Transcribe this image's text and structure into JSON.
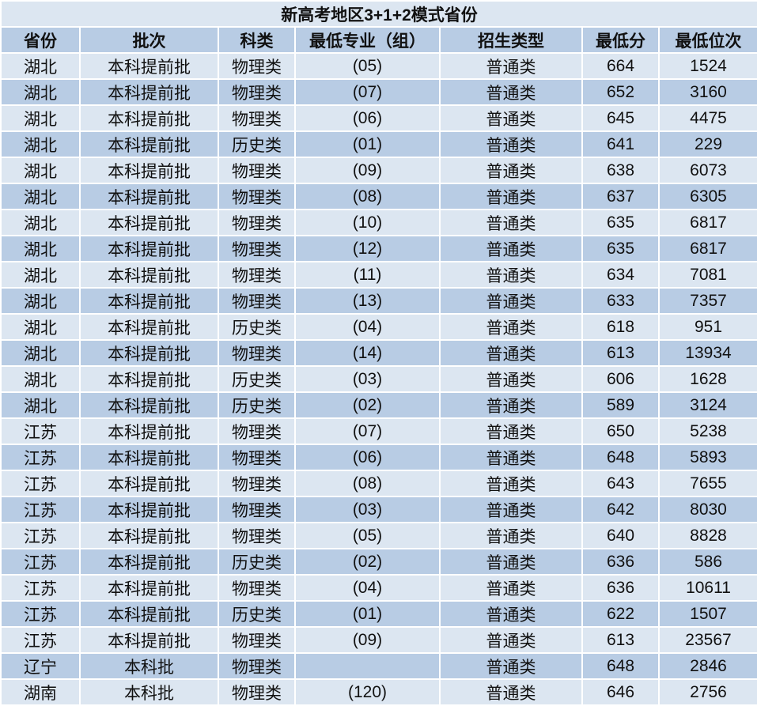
{
  "title": "新高考地区3+1+2模式省份",
  "headers": [
    "省份",
    "批次",
    "科类",
    "最低专业（组）",
    "招生类型",
    "最低分",
    "最低位次"
  ],
  "rows": [
    [
      "湖北",
      "本科提前批",
      "物理类",
      "(05)",
      "普通类",
      "664",
      "1524"
    ],
    [
      "湖北",
      "本科提前批",
      "物理类",
      "(07)",
      "普通类",
      "652",
      "3160"
    ],
    [
      "湖北",
      "本科提前批",
      "物理类",
      "(06)",
      "普通类",
      "645",
      "4475"
    ],
    [
      "湖北",
      "本科提前批",
      "历史类",
      "(01)",
      "普通类",
      "641",
      "229"
    ],
    [
      "湖北",
      "本科提前批",
      "物理类",
      "(09)",
      "普通类",
      "638",
      "6073"
    ],
    [
      "湖北",
      "本科提前批",
      "物理类",
      "(08)",
      "普通类",
      "637",
      "6305"
    ],
    [
      "湖北",
      "本科提前批",
      "物理类",
      "(10)",
      "普通类",
      "635",
      "6817"
    ],
    [
      "湖北",
      "本科提前批",
      "物理类",
      "(12)",
      "普通类",
      "635",
      "6817"
    ],
    [
      "湖北",
      "本科提前批",
      "物理类",
      "(11)",
      "普通类",
      "634",
      "7081"
    ],
    [
      "湖北",
      "本科提前批",
      "物理类",
      "(13)",
      "普通类",
      "633",
      "7357"
    ],
    [
      "湖北",
      "本科提前批",
      "历史类",
      "(04)",
      "普通类",
      "618",
      "951"
    ],
    [
      "湖北",
      "本科提前批",
      "物理类",
      "(14)",
      "普通类",
      "613",
      "13934"
    ],
    [
      "湖北",
      "本科提前批",
      "历史类",
      "(03)",
      "普通类",
      "606",
      "1628"
    ],
    [
      "湖北",
      "本科提前批",
      "历史类",
      "(02)",
      "普通类",
      "589",
      "3124"
    ],
    [
      "江苏",
      "本科提前批",
      "物理类",
      "(07)",
      "普通类",
      "650",
      "5238"
    ],
    [
      "江苏",
      "本科提前批",
      "物理类",
      "(06)",
      "普通类",
      "648",
      "5893"
    ],
    [
      "江苏",
      "本科提前批",
      "物理类",
      "(08)",
      "普通类",
      "643",
      "7655"
    ],
    [
      "江苏",
      "本科提前批",
      "物理类",
      "(03)",
      "普通类",
      "642",
      "8030"
    ],
    [
      "江苏",
      "本科提前批",
      "物理类",
      "(05)",
      "普通类",
      "640",
      "8828"
    ],
    [
      "江苏",
      "本科提前批",
      "历史类",
      "(02)",
      "普通类",
      "636",
      "586"
    ],
    [
      "江苏",
      "本科提前批",
      "物理类",
      "(04)",
      "普通类",
      "636",
      "10611"
    ],
    [
      "江苏",
      "本科提前批",
      "历史类",
      "(01)",
      "普通类",
      "622",
      "1507"
    ],
    [
      "江苏",
      "本科提前批",
      "物理类",
      "(09)",
      "普通类",
      "613",
      "23567"
    ],
    [
      "辽宁",
      "本科批",
      "物理类",
      "",
      "普通类",
      "648",
      "2846"
    ],
    [
      "湖南",
      "本科批",
      "物理类",
      "(120)",
      "普通类",
      "646",
      "2756"
    ]
  ]
}
